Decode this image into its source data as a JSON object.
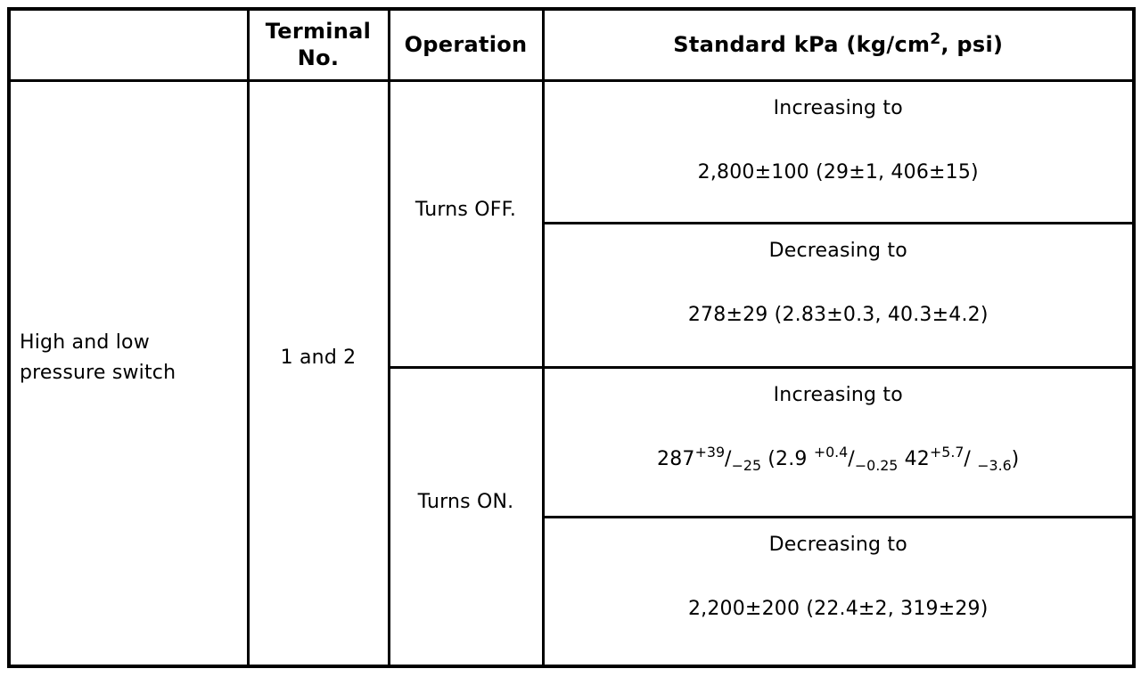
{
  "colors": {
    "border": "#000000",
    "text": "#000000",
    "background": "#ffffff"
  },
  "table": {
    "header": {
      "blank": "",
      "terminal_no": "Terminal No.",
      "operation": "Operation",
      "standard_segments": [
        {
          "t": "Standard kPa (kg/cm"
        },
        {
          "t": "2",
          "style": "sup"
        },
        {
          "t": ", psi)"
        }
      ]
    },
    "component": "High and low pressure switch",
    "terminal_no": "1 and 2",
    "groups": [
      {
        "operation": "Turns OFF.",
        "standards": [
          {
            "direction": "Increasing to",
            "value_segments": [
              {
                "t": "2,800±100 (29±1, 406±15)"
              }
            ]
          },
          {
            "direction": "Decreasing to",
            "value_segments": [
              {
                "t": "278±29 (2.83±0.3, 40.3±4.2)"
              }
            ]
          }
        ]
      },
      {
        "operation": "Turns ON.",
        "standards": [
          {
            "direction": "Increasing to",
            "value_segments": [
              {
                "t": "287"
              },
              {
                "t": "+39",
                "style": "sup"
              },
              {
                "t": "/"
              },
              {
                "t": "−25",
                "style": "sub"
              },
              {
                "t": " (2.9 "
              },
              {
                "t": "+0.4",
                "style": "sup"
              },
              {
                "t": "/"
              },
              {
                "t": "−0.25",
                "style": "sub"
              },
              {
                "t": " 42"
              },
              {
                "t": "+5.7",
                "style": "sup"
              },
              {
                "t": "/ "
              },
              {
                "t": "−3.6",
                "style": "sub"
              },
              {
                "t": ")"
              }
            ]
          },
          {
            "direction": "Decreasing to",
            "value_segments": [
              {
                "t": "2,200±200 (22.4±2, 319±29)"
              }
            ]
          }
        ]
      }
    ]
  }
}
